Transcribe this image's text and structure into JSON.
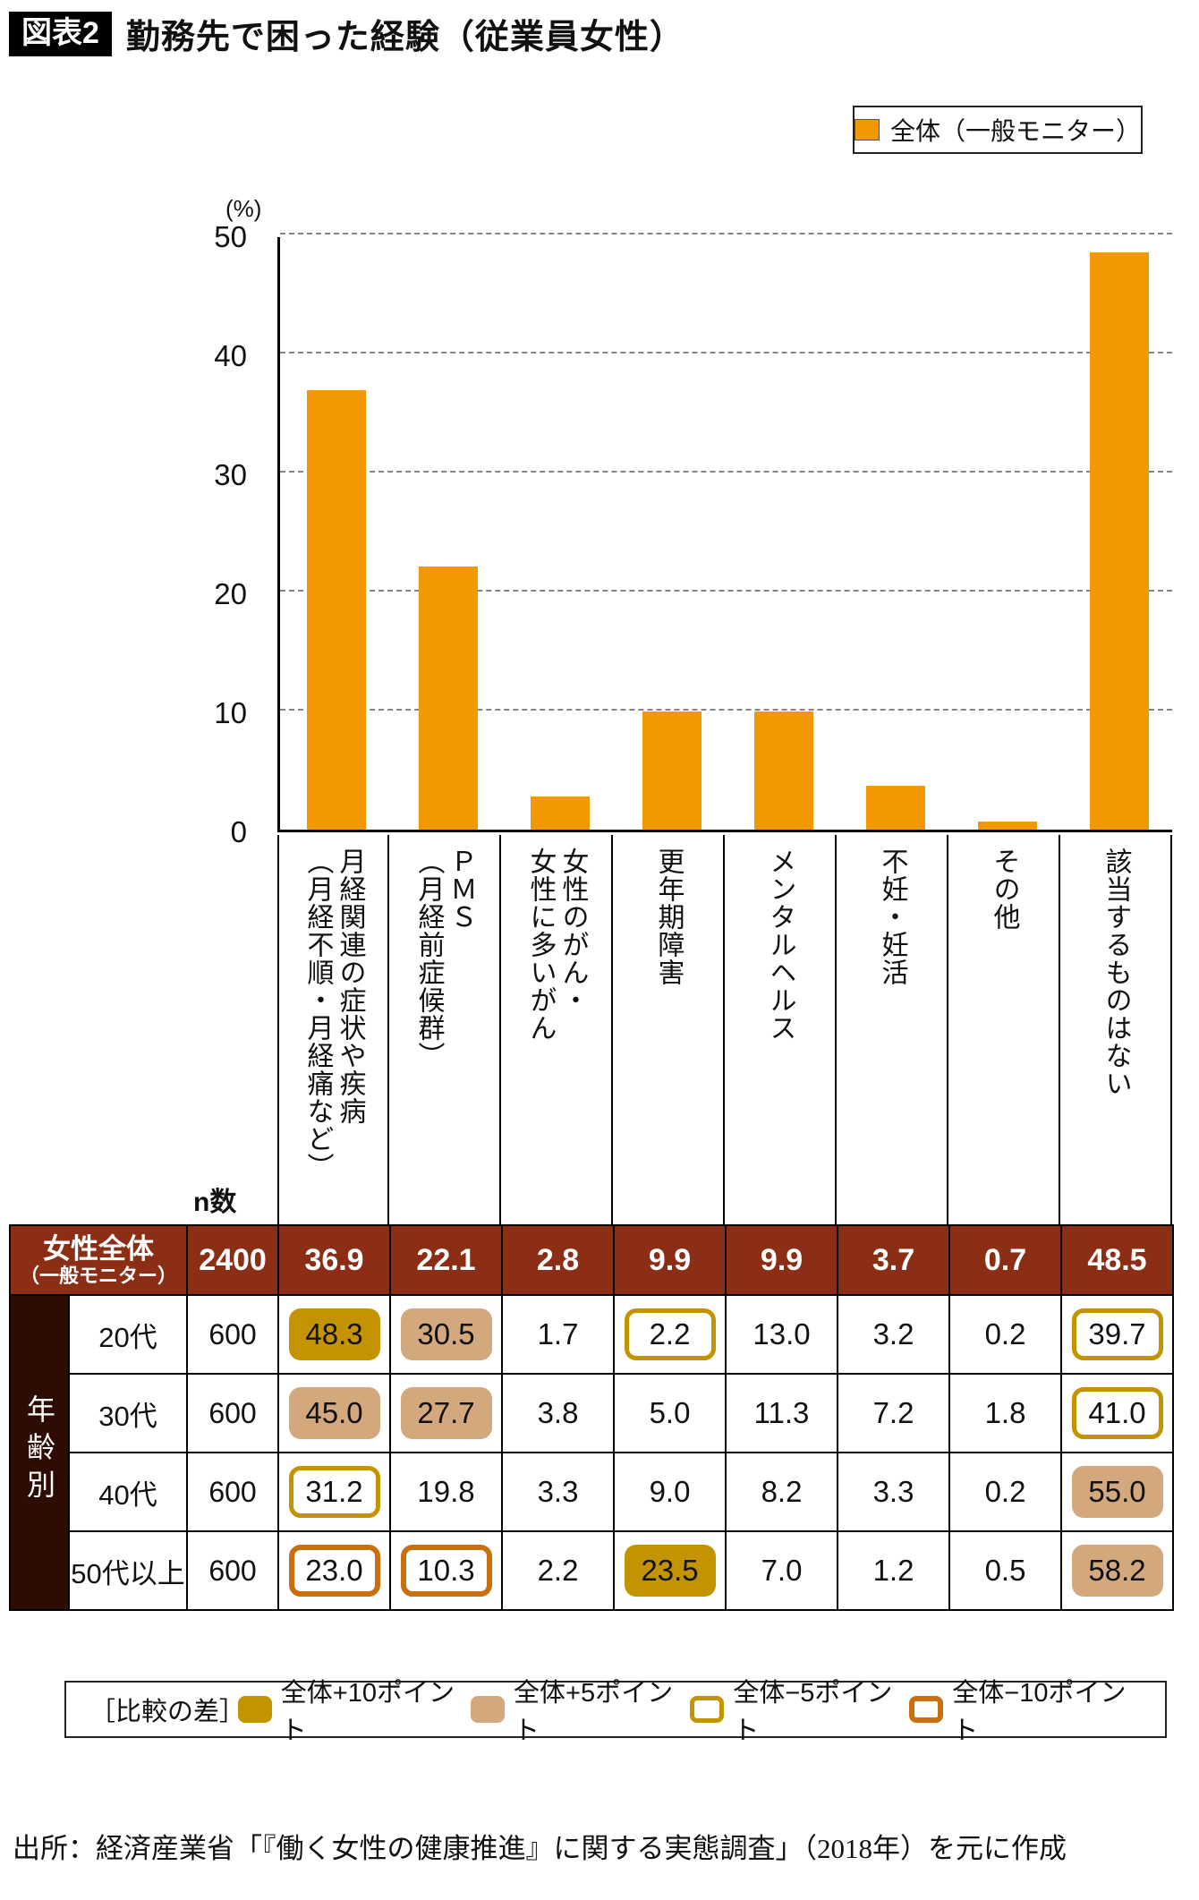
{
  "header": {
    "tag": "図表2",
    "title": "勤務先で困った経験（従業員女性）"
  },
  "legend": {
    "label": "全体（一般モニター）"
  },
  "chart_data": {
    "type": "bar",
    "title": "勤務先で困った経験（従業員女性）",
    "series_name": "全体（一般モニター）",
    "unit_label": "(%)",
    "xlabel": "",
    "ylabel": "%",
    "ylim": [
      0,
      50
    ],
    "yticks": [
      0,
      10,
      20,
      30,
      40,
      50
    ],
    "grid": "horizontal-dashed",
    "legend_position": "top-right",
    "categories": [
      "月経関連の症状や疾病（月経不順・月経痛など）",
      "ＰＭＳ（月経前症候群）",
      "女性のがん・女性に多いがん",
      "更年期障害",
      "メンタルヘルス",
      "不妊・妊活",
      "その他",
      "該当するものはない"
    ],
    "category_lines": [
      [
        "月経関連の症状や疾病",
        "（月経不順・月経痛など）"
      ],
      [
        "ＰＭＳ",
        "（月経前症候群）"
      ],
      [
        "女性のがん・",
        "女性に多いがん"
      ],
      [
        "更年期障害"
      ],
      [
        "メンタルヘルス"
      ],
      [
        "不妊・妊活"
      ],
      [
        "その他"
      ],
      [
        "該当するものはない"
      ]
    ],
    "values": [
      36.9,
      22.1,
      2.8,
      9.9,
      9.9,
      3.7,
      0.7,
      48.5
    ]
  },
  "table": {
    "n_label": "n数",
    "header_row": {
      "label_lines": [
        "女性全体",
        "（一般モニター）"
      ],
      "n": "2400",
      "values": [
        "36.9",
        "22.1",
        "2.8",
        "9.9",
        "9.9",
        "3.7",
        "0.7",
        "48.5"
      ]
    },
    "group_label": "年齢別",
    "rows": [
      {
        "label": "20代",
        "n": "600",
        "values": [
          "48.3",
          "30.5",
          "1.7",
          "2.2",
          "13.0",
          "3.2",
          "0.2",
          "39.7"
        ],
        "marks": [
          "plus10",
          "plus5",
          null,
          "minus5",
          null,
          null,
          null,
          "minus5"
        ]
      },
      {
        "label": "30代",
        "n": "600",
        "values": [
          "45.0",
          "27.7",
          "3.8",
          "5.0",
          "11.3",
          "7.2",
          "1.8",
          "41.0"
        ],
        "marks": [
          "plus5",
          "plus5",
          null,
          null,
          null,
          null,
          null,
          "minus5"
        ]
      },
      {
        "label": "40代",
        "n": "600",
        "values": [
          "31.2",
          "19.8",
          "3.3",
          "9.0",
          "8.2",
          "3.3",
          "0.2",
          "55.0"
        ],
        "marks": [
          "minus5",
          null,
          null,
          null,
          null,
          null,
          null,
          "plus5"
        ]
      },
      {
        "label": "50代以上",
        "n": "600",
        "values": [
          "23.0",
          "10.3",
          "2.2",
          "23.5",
          "7.0",
          "1.2",
          "0.5",
          "58.2"
        ],
        "marks": [
          "minus10",
          "minus10",
          null,
          "plus10",
          null,
          null,
          null,
          "plus5"
        ]
      }
    ]
  },
  "diff_legend": {
    "title": "［比較の差］",
    "items": [
      {
        "label": "全体+10ポイント",
        "style": "plus10"
      },
      {
        "label": "全体+5ポイント",
        "style": "plus5"
      },
      {
        "label": "全体−5ポイント",
        "style": "minus5"
      },
      {
        "label": "全体−10ポイント",
        "style": "minus10"
      }
    ]
  },
  "source": "出所：経済産業省「『働く女性の健康推進』に関する実態調査」（2018年）を元に作成",
  "colors": {
    "bar": "#F39800",
    "table_header_bg": "#8C2E15",
    "group_label_bg": "#2E0C03",
    "plus10": "#C49400",
    "plus5": "#D3A87C",
    "minus5_border": "#C49400",
    "minus10_border": "#C96F0E",
    "grid": "#848484"
  }
}
